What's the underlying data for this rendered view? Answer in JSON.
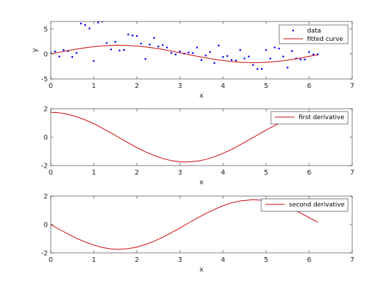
{
  "chart_data": [
    {
      "type": "scatter+line",
      "title": "",
      "xlabel": "x",
      "ylabel": "y",
      "xlim": [
        0,
        7
      ],
      "ylim": [
        -5,
        6.5
      ],
      "xticks": [
        0,
        1,
        2,
        3,
        4,
        5,
        6,
        7
      ],
      "xtick_labels": [
        "0",
        "1",
        "2",
        "3",
        "4",
        "5",
        "6",
        "7"
      ],
      "yticks": [
        -5,
        0,
        5
      ],
      "ytick_labels": [
        "-5",
        "0",
        "5"
      ],
      "legend_position": "top-right",
      "series": [
        {
          "name": "data",
          "kind": "scatter",
          "color": "#0000ff",
          "x": [
            0.0,
            0.1,
            0.2,
            0.3,
            0.4,
            0.5,
            0.6,
            0.7,
            0.8,
            0.9,
            1.0,
            1.1,
            1.2,
            1.3,
            1.4,
            1.5,
            1.6,
            1.7,
            1.8,
            1.9,
            2.0,
            2.1,
            2.2,
            2.3,
            2.4,
            2.5,
            2.6,
            2.7,
            2.8,
            2.9,
            3.0,
            3.1,
            3.2,
            3.3,
            3.4,
            3.5,
            3.6,
            3.7,
            3.8,
            3.9,
            4.0,
            4.1,
            4.2,
            4.3,
            4.4,
            4.5,
            4.6,
            4.7,
            4.8,
            4.9,
            5.0,
            5.1,
            5.2,
            5.3,
            5.4,
            5.5,
            5.6,
            5.7,
            5.8,
            5.9,
            6.0,
            6.1,
            6.2
          ],
          "y": [
            0.3,
            0.5,
            -0.5,
            0.8,
            0.6,
            -0.6,
            0.2,
            6.1,
            5.8,
            5.1,
            -1.4,
            6.3,
            6.5,
            2.2,
            0.9,
            2.4,
            0.7,
            0.8,
            3.9,
            3.7,
            3.6,
            2.1,
            -1.0,
            1.9,
            3.2,
            1.5,
            1.8,
            1.3,
            0.2,
            -0.1,
            0.5,
            0.1,
            0.3,
            0.2,
            1.3,
            -1.2,
            -0.3,
            0.4,
            -1.8,
            1.7,
            -0.6,
            -0.4,
            -1.2,
            -1.3,
            0.8,
            -0.9,
            -0.5,
            -2.2,
            -3.0,
            -3.0,
            0.8,
            -0.9,
            1.3,
            1.1,
            -0.5,
            -2.7,
            0.6,
            -0.9,
            -1.1,
            -1.1,
            0.4,
            -0.1,
            -0.1
          ]
        },
        {
          "name": "fitted curve",
          "kind": "line",
          "color": "#cc0000",
          "x": [
            0.0,
            0.2,
            0.4,
            0.6,
            0.8,
            1.0,
            1.2,
            1.4,
            1.57,
            1.8,
            2.0,
            2.2,
            2.4,
            2.6,
            2.8,
            3.0,
            3.14,
            3.4,
            3.6,
            3.8,
            4.0,
            4.2,
            4.4,
            4.71,
            5.0,
            5.2,
            5.4,
            5.6,
            5.8,
            6.0,
            6.2
          ],
          "y": [
            0.0,
            0.34,
            0.67,
            0.97,
            1.23,
            1.45,
            1.62,
            1.72,
            1.75,
            1.7,
            1.59,
            1.41,
            1.18,
            0.9,
            0.58,
            0.25,
            0.0,
            -0.45,
            -0.77,
            -1.06,
            -1.32,
            -1.52,
            -1.66,
            -1.75,
            -1.68,
            -1.54,
            -1.35,
            -1.1,
            -0.81,
            -0.49,
            -0.15
          ]
        }
      ]
    },
    {
      "type": "line",
      "title": "",
      "xlabel": "x",
      "ylabel": "",
      "xlim": [
        0,
        7
      ],
      "ylim": [
        -2,
        2
      ],
      "xticks": [
        0,
        1,
        2,
        3,
        4,
        5,
        6,
        7
      ],
      "xtick_labels": [
        "0",
        "1",
        "2",
        "3",
        "4",
        "5",
        "6",
        "7"
      ],
      "yticks": [
        -2,
        0,
        2
      ],
      "ytick_labels": [
        "-2",
        "0",
        "2"
      ],
      "legend_position": "top-right",
      "series": [
        {
          "name": "first derivative",
          "kind": "line",
          "color": "#cc0000",
          "x": [
            0.0,
            0.2,
            0.4,
            0.6,
            0.8,
            1.0,
            1.2,
            1.4,
            1.6,
            1.8,
            2.0,
            2.2,
            2.4,
            2.6,
            2.8,
            3.0,
            3.14,
            3.4,
            3.6,
            3.8,
            4.0,
            4.2,
            4.4,
            4.6,
            4.8,
            5.0,
            5.2,
            5.4,
            5.6,
            5.8,
            6.0,
            6.2
          ],
          "y": [
            1.75,
            1.72,
            1.61,
            1.44,
            1.22,
            0.95,
            0.63,
            0.3,
            -0.05,
            -0.4,
            -0.73,
            -1.03,
            -1.29,
            -1.5,
            -1.65,
            -1.73,
            -1.75,
            -1.69,
            -1.57,
            -1.38,
            -1.14,
            -0.86,
            -0.53,
            -0.19,
            0.15,
            0.5,
            0.82,
            1.11,
            1.36,
            1.55,
            1.68,
            1.74
          ]
        }
      ]
    },
    {
      "type": "line",
      "title": "",
      "xlabel": "x",
      "ylabel": "",
      "xlim": [
        0,
        7
      ],
      "ylim": [
        -2,
        2
      ],
      "xticks": [
        0,
        1,
        2,
        3,
        4,
        5,
        6,
        7
      ],
      "xtick_labels": [
        "0",
        "1",
        "2",
        "3",
        "4",
        "5",
        "6",
        "7"
      ],
      "yticks": [
        -2,
        0,
        2
      ],
      "ytick_labels": [
        "-2",
        "0",
        "2"
      ],
      "legend_position": "top-right",
      "series": [
        {
          "name": "second derivative",
          "kind": "line",
          "color": "#cc0000",
          "x": [
            0.0,
            0.2,
            0.4,
            0.6,
            0.8,
            1.0,
            1.2,
            1.4,
            1.57,
            1.8,
            2.0,
            2.2,
            2.4,
            2.6,
            2.8,
            3.0,
            3.14,
            3.4,
            3.6,
            3.8,
            4.0,
            4.2,
            4.4,
            4.71,
            5.0,
            5.2,
            5.4,
            5.6,
            5.8,
            6.0,
            6.2
          ],
          "y": [
            0.0,
            -0.34,
            -0.67,
            -0.97,
            -1.23,
            -1.45,
            -1.62,
            -1.72,
            -1.75,
            -1.7,
            -1.59,
            -1.41,
            -1.18,
            -0.9,
            -0.58,
            -0.25,
            0.0,
            0.45,
            0.77,
            1.06,
            1.32,
            1.52,
            1.66,
            1.75,
            1.68,
            1.54,
            1.35,
            1.1,
            0.81,
            0.49,
            0.15
          ]
        }
      ]
    }
  ]
}
